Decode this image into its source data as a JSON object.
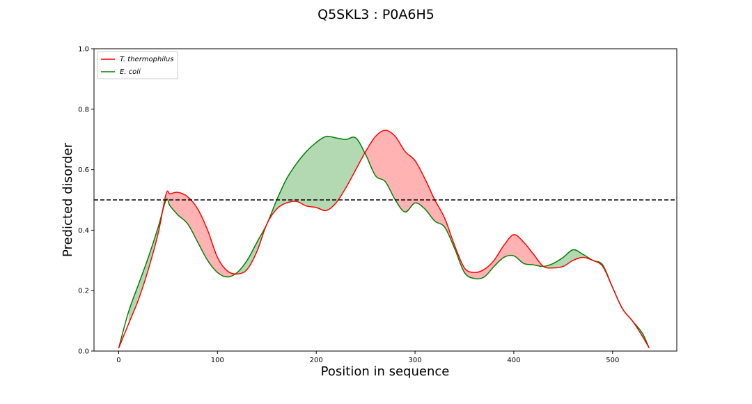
{
  "chart_data": {
    "type": "line",
    "title": "Q5SKL3 : P0A6H5",
    "xlabel": "Position in sequence",
    "ylabel": "Predicted disorder",
    "xlim": [
      -25,
      565
    ],
    "ylim": [
      0.0,
      1.0
    ],
    "xticks": [
      0,
      100,
      200,
      300,
      400,
      500
    ],
    "yticks": [
      0.0,
      0.2,
      0.4,
      0.6,
      0.8,
      1.0
    ],
    "ytick_labels": [
      "0.0",
      "0.2",
      "0.4",
      "0.6",
      "0.8",
      "1.0"
    ],
    "threshold": 0.5,
    "threshold_style": "dashed",
    "legend_position": "upper-left",
    "fill_note": "red fill where T. thermophilus > E. coli, green fill where E. coli > T. thermophilus",
    "series": [
      {
        "name": "T. thermophilus",
        "color": "#ff0000",
        "fill_color": "#ffb3b3",
        "x": [
          0,
          10,
          20,
          30,
          40,
          48,
          52,
          60,
          70,
          80,
          90,
          100,
          110,
          120,
          130,
          140,
          150,
          160,
          170,
          180,
          190,
          200,
          210,
          220,
          230,
          240,
          250,
          260,
          270,
          280,
          290,
          300,
          310,
          320,
          330,
          340,
          350,
          360,
          370,
          380,
          390,
          400,
          410,
          420,
          430,
          440,
          450,
          460,
          470,
          480,
          490,
          500,
          510,
          520,
          530,
          537
        ],
        "y": [
          0.01,
          0.09,
          0.17,
          0.27,
          0.39,
          0.52,
          0.52,
          0.525,
          0.51,
          0.47,
          0.4,
          0.31,
          0.265,
          0.255,
          0.27,
          0.33,
          0.42,
          0.47,
          0.49,
          0.495,
          0.48,
          0.475,
          0.465,
          0.49,
          0.54,
          0.6,
          0.66,
          0.71,
          0.73,
          0.71,
          0.66,
          0.63,
          0.57,
          0.5,
          0.44,
          0.35,
          0.275,
          0.26,
          0.27,
          0.3,
          0.35,
          0.385,
          0.36,
          0.32,
          0.28,
          0.275,
          0.28,
          0.3,
          0.31,
          0.3,
          0.28,
          0.21,
          0.14,
          0.1,
          0.05,
          0.01
        ]
      },
      {
        "name": "E. coli",
        "color": "#008000",
        "fill_color": "#b3d9b3",
        "x": [
          0,
          10,
          20,
          30,
          40,
          48,
          52,
          60,
          70,
          80,
          90,
          100,
          110,
          120,
          130,
          140,
          150,
          160,
          170,
          180,
          190,
          200,
          210,
          220,
          230,
          240,
          250,
          260,
          270,
          280,
          290,
          300,
          310,
          320,
          330,
          340,
          350,
          360,
          370,
          380,
          390,
          400,
          410,
          420,
          430,
          440,
          450,
          460,
          470,
          480,
          490,
          500,
          510,
          520,
          530,
          537
        ],
        "y": [
          0.01,
          0.13,
          0.22,
          0.31,
          0.41,
          0.5,
          0.48,
          0.45,
          0.42,
          0.36,
          0.3,
          0.26,
          0.245,
          0.26,
          0.3,
          0.36,
          0.42,
          0.5,
          0.57,
          0.62,
          0.66,
          0.69,
          0.71,
          0.705,
          0.7,
          0.705,
          0.65,
          0.58,
          0.56,
          0.5,
          0.46,
          0.49,
          0.47,
          0.43,
          0.41,
          0.34,
          0.26,
          0.24,
          0.245,
          0.28,
          0.31,
          0.315,
          0.29,
          0.285,
          0.28,
          0.29,
          0.31,
          0.335,
          0.32,
          0.3,
          0.285,
          0.21,
          0.14,
          0.1,
          0.06,
          0.01
        ]
      }
    ]
  }
}
